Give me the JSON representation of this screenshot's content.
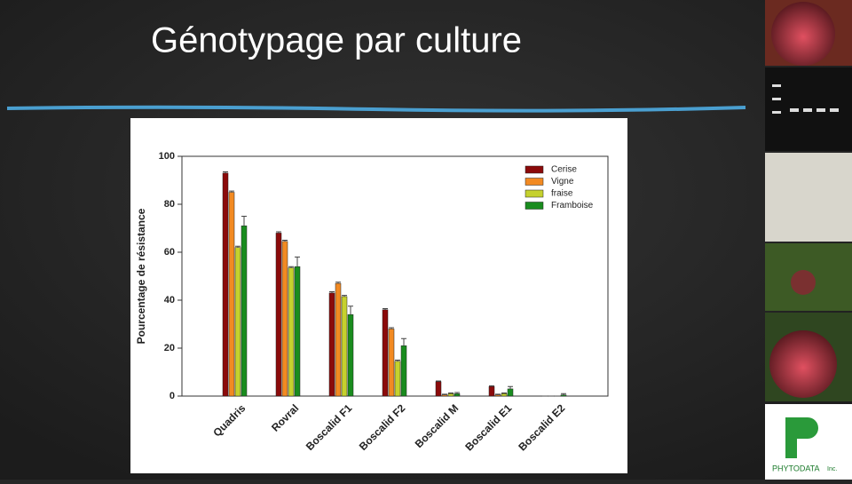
{
  "slide_title": "Génotypage par culture",
  "logo_text": "PHYTODATA",
  "logo_suffix": "Inc.",
  "chart_data": {
    "type": "bar",
    "y_label": "Pourcentage de résistance",
    "categories": [
      "Quadris",
      "Rovral",
      "Boscalid F1",
      "Boscalid F2",
      "Boscalid M",
      "Boscalid E1",
      "Boscalid E2"
    ],
    "series": [
      {
        "name": "Cerise",
        "color": "#8b0a0a",
        "values": [
          93,
          68,
          43,
          36,
          6,
          4,
          0
        ],
        "errors": [
          0.5,
          0.5,
          0.5,
          0.5,
          0.3,
          0.3,
          0
        ]
      },
      {
        "name": "Vigne",
        "color": "#f28a22",
        "values": [
          85,
          64.5,
          47,
          28,
          0.5,
          0.5,
          0
        ],
        "errors": [
          0.5,
          0.5,
          0.5,
          0.5,
          0.3,
          0.3,
          0
        ]
      },
      {
        "name": "fraise",
        "color": "#c5d12e",
        "values": [
          62,
          53.5,
          41.5,
          14.5,
          1,
          1,
          0
        ],
        "errors": [
          0.5,
          0.5,
          0.5,
          0.5,
          0.3,
          0.3,
          0
        ]
      },
      {
        "name": "Framboise",
        "color": "#198c1e",
        "values": [
          71,
          54,
          34,
          21,
          1,
          3,
          0.5
        ],
        "errors": [
          4,
          4,
          3.5,
          3,
          0.5,
          1,
          0.5
        ]
      }
    ],
    "ylim": [
      0,
      100
    ],
    "yticks": [
      0,
      20,
      40,
      60,
      80,
      100
    ],
    "legend": "top-right"
  }
}
